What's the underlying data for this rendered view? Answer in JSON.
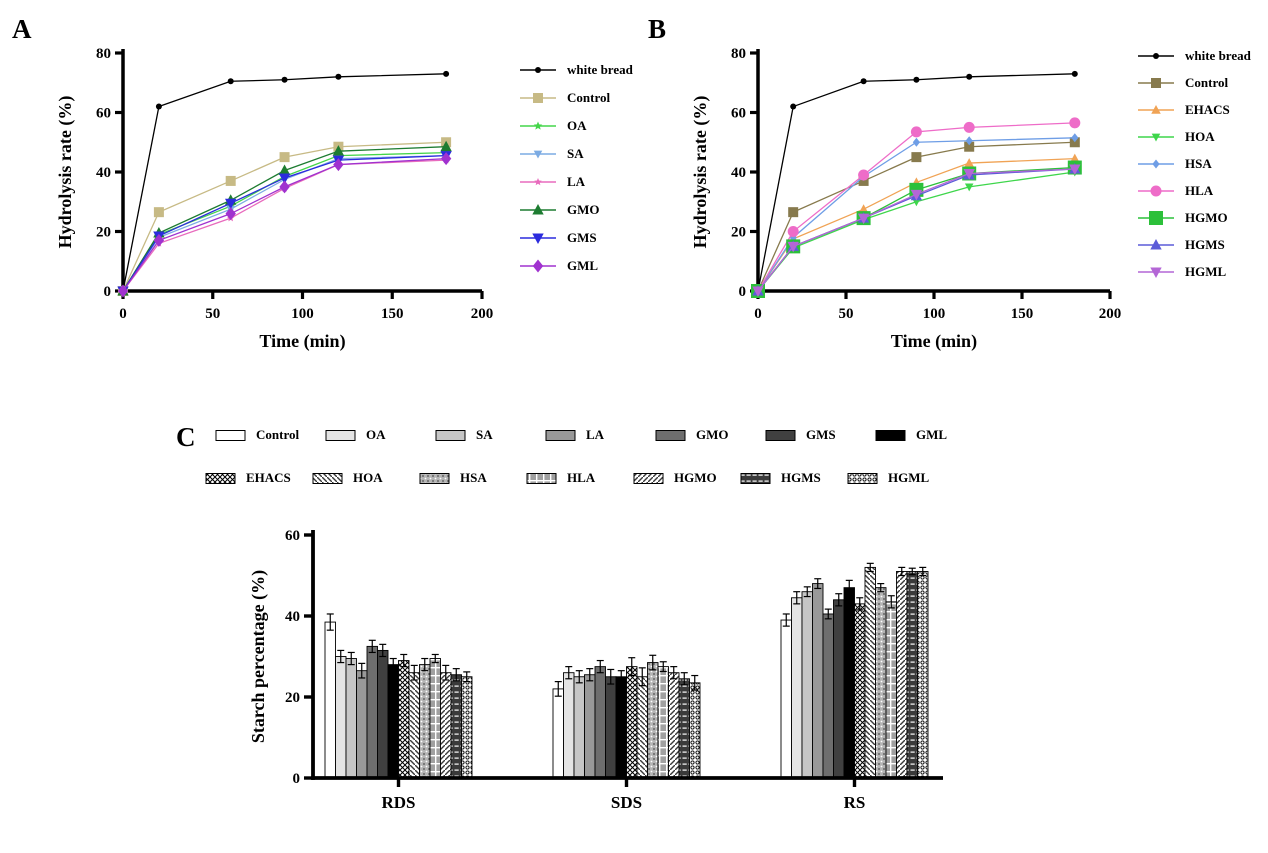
{
  "figure": {
    "panel_a_label": "A",
    "panel_b_label": "B",
    "panel_c_label": "C"
  },
  "chart_data": [
    {
      "panel": "A",
      "type": "line",
      "xlabel": "Time (min)",
      "ylabel": "Hydrolysis rate (%)",
      "xlim": [
        0,
        200
      ],
      "ylim": [
        0,
        80
      ],
      "xticks": [
        0,
        50,
        100,
        150,
        200
      ],
      "yticks": [
        0,
        20,
        40,
        60,
        80
      ],
      "x": [
        0,
        20,
        60,
        90,
        120,
        180
      ],
      "legend_position": "right",
      "grid": false,
      "series": [
        {
          "name": "white bread",
          "color": "#000000",
          "marker": "circle",
          "size": 3,
          "values": [
            0,
            62,
            70.5,
            71,
            72,
            73
          ]
        },
        {
          "name": "Control",
          "color": "#c7ba85",
          "marker": "square",
          "size": 5,
          "values": [
            0,
            26.5,
            37,
            45,
            48.5,
            50
          ]
        },
        {
          "name": "OA",
          "color": "#44d54a",
          "marker": "star",
          "size": 4.5,
          "values": [
            0,
            19,
            28.5,
            38.5,
            45.5,
            46.5
          ]
        },
        {
          "name": "SA",
          "color": "#7cabe3",
          "marker": "triangle-down",
          "size": 4.5,
          "values": [
            0,
            18,
            27.5,
            37.5,
            44.5,
            45.5
          ]
        },
        {
          "name": "LA",
          "color": "#e86bbd",
          "marker": "star",
          "size": 4,
          "values": [
            0,
            16,
            24.5,
            34.5,
            42.5,
            44
          ]
        },
        {
          "name": "GMO",
          "color": "#1d7c31",
          "marker": "triangle",
          "size": 6,
          "values": [
            0,
            19.5,
            30.5,
            40.5,
            47,
            48.5
          ]
        },
        {
          "name": "GMS",
          "color": "#2b2bdd",
          "marker": "triangle-down",
          "size": 6,
          "values": [
            0,
            18.5,
            29.5,
            38,
            44,
            45.5
          ]
        },
        {
          "name": "GML",
          "color": "#a032cf",
          "marker": "diamond",
          "size": 6.5,
          "values": [
            0,
            17,
            26,
            35,
            42.5,
            44.5
          ]
        }
      ]
    },
    {
      "panel": "B",
      "type": "line",
      "xlabel": "Time (min)",
      "ylabel": "Hydrolysis rate (%)",
      "xlim": [
        0,
        200
      ],
      "ylim": [
        0,
        80
      ],
      "xticks": [
        0,
        50,
        100,
        150,
        200
      ],
      "yticks": [
        0,
        20,
        40,
        60,
        80
      ],
      "x": [
        0,
        20,
        60,
        90,
        120,
        180
      ],
      "legend_position": "right",
      "grid": false,
      "series": [
        {
          "name": "white bread",
          "color": "#000000",
          "marker": "circle",
          "size": 3,
          "values": [
            0,
            62,
            70.5,
            71,
            72,
            73
          ]
        },
        {
          "name": "Control",
          "color": "#877a4d",
          "marker": "square",
          "size": 5,
          "values": [
            0,
            26.5,
            37,
            45,
            48.5,
            50
          ]
        },
        {
          "name": "EHACS",
          "color": "#f0a355",
          "marker": "triangle",
          "size": 5,
          "values": [
            0,
            17.5,
            27.5,
            36.5,
            43,
            44.5
          ]
        },
        {
          "name": "HOA",
          "color": "#3ed64b",
          "marker": "triangle-down",
          "size": 4.5,
          "values": [
            0,
            14.5,
            24,
            30,
            35,
            40
          ]
        },
        {
          "name": "HSA",
          "color": "#6f9ee6",
          "marker": "diamond",
          "size": 4.5,
          "values": [
            0,
            18,
            38.5,
            50,
            50.5,
            51.5
          ]
        },
        {
          "name": "HLA",
          "color": "#ee6cc8",
          "marker": "circle",
          "size": 5.5,
          "values": [
            0,
            20,
            39,
            53.5,
            55,
            56.5
          ]
        },
        {
          "name": "HGMO",
          "color": "#2cc03a",
          "marker": "square",
          "size": 7,
          "values": [
            0,
            15,
            24.5,
            34,
            39.5,
            41.5
          ]
        },
        {
          "name": "HGMS",
          "color": "#5c5cd8",
          "marker": "triangle",
          "size": 6,
          "values": [
            0,
            15,
            24.5,
            32,
            39,
            41
          ]
        },
        {
          "name": "HGML",
          "color": "#b466d6",
          "marker": "triangle-down",
          "size": 6,
          "values": [
            0,
            15,
            24.5,
            32.5,
            39.5,
            41
          ]
        }
      ]
    },
    {
      "panel": "C",
      "type": "bar",
      "ylabel": "Starch percentage (%)",
      "ylim": [
        0,
        60
      ],
      "yticks": [
        0,
        20,
        40,
        60
      ],
      "categories": [
        "RDS",
        "SDS",
        "RS"
      ],
      "legend_position": "top",
      "grid": false,
      "series": [
        {
          "name": "Control",
          "pattern": "solid",
          "fill": "#ffffff",
          "values": [
            38.5,
            22,
            39
          ],
          "errors": [
            2,
            1.8,
            1.5
          ]
        },
        {
          "name": "OA",
          "pattern": "solid",
          "fill": "#e4e4e4",
          "values": [
            30,
            26,
            44.5
          ],
          "errors": [
            1.5,
            1.5,
            1.5
          ]
        },
        {
          "name": "SA",
          "pattern": "solid",
          "fill": "#c6c6c6",
          "values": [
            29.5,
            25,
            46
          ],
          "errors": [
            1.5,
            1.5,
            1.2
          ]
        },
        {
          "name": "LA",
          "pattern": "solid",
          "fill": "#999999",
          "values": [
            26.5,
            25.5,
            48
          ],
          "errors": [
            1.8,
            1.5,
            1.2
          ]
        },
        {
          "name": "GMO",
          "pattern": "solid",
          "fill": "#6e6e6e",
          "values": [
            32.5,
            27.5,
            40.5
          ],
          "errors": [
            1.5,
            1.5,
            1.2
          ]
        },
        {
          "name": "GMS",
          "pattern": "solid",
          "fill": "#404040",
          "values": [
            31.5,
            25,
            44
          ],
          "errors": [
            1.5,
            1.8,
            1.5
          ]
        },
        {
          "name": "GML",
          "pattern": "solid",
          "fill": "#000000",
          "values": [
            28,
            25,
            47
          ],
          "errors": [
            1.5,
            1.5,
            1.8
          ]
        },
        {
          "name": "EHACS",
          "pattern": "crosshatch",
          "fill": "#ffffff",
          "values": [
            29,
            27.5,
            43
          ],
          "errors": [
            1.5,
            2.2,
            1.5
          ]
        },
        {
          "name": "HOA",
          "pattern": "backslash",
          "fill": "#ffffff",
          "values": [
            26,
            25,
            52
          ],
          "errors": [
            1.8,
            2.2,
            1
          ]
        },
        {
          "name": "HSA",
          "pattern": "dots",
          "fill": "#b4b4b4",
          "values": [
            28,
            28.5,
            47
          ],
          "errors": [
            1.5,
            1.8,
            1
          ]
        },
        {
          "name": "HLA",
          "pattern": "lattice",
          "fill": "#a0a0a0",
          "values": [
            29.5,
            27.5,
            43.5
          ],
          "errors": [
            1,
            1.2,
            1.5
          ]
        },
        {
          "name": "HGMO",
          "pattern": "slash",
          "fill": "#ffffff",
          "values": [
            26,
            26,
            51
          ],
          "errors": [
            1.8,
            1.5,
            1
          ]
        },
        {
          "name": "HGMS",
          "pattern": "darkdash",
          "fill": "#3a3a3a",
          "values": [
            25.5,
            24.5,
            51
          ],
          "errors": [
            1.5,
            1.5,
            0.8
          ]
        },
        {
          "name": "HGML",
          "pattern": "circles",
          "fill": "#ffffff",
          "values": [
            25,
            23.5,
            51
          ],
          "errors": [
            1.2,
            1.8,
            1
          ]
        }
      ]
    }
  ]
}
